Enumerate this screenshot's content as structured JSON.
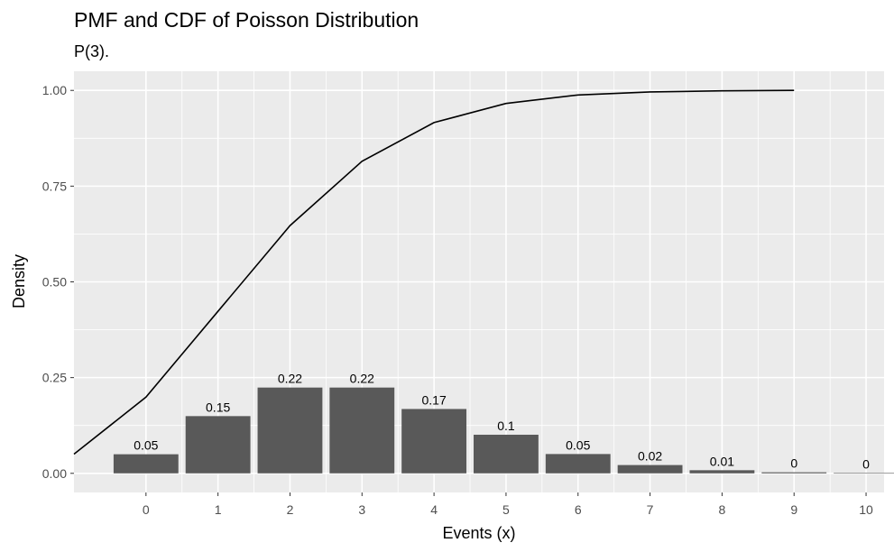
{
  "chart_data": {
    "type": "bar",
    "title": "PMF and CDF of Poisson Distribution",
    "subtitle": "P(3).",
    "xlabel": "Events (x)",
    "ylabel": "Density",
    "xlim": [
      -1,
      10.25
    ],
    "ylim": [
      -0.05,
      1.05
    ],
    "x_ticks": [
      0,
      1,
      2,
      3,
      4,
      5,
      6,
      7,
      8,
      9,
      10
    ],
    "y_ticks": [
      0.0,
      0.25,
      0.5,
      0.75,
      1.0
    ],
    "y_tick_labels": [
      "0.00",
      "0.25",
      "0.50",
      "0.75",
      "1.00"
    ],
    "grid": true,
    "legend": "none",
    "colors": {
      "panel": "#ebebeb",
      "bar": "#595959",
      "line": "#000000",
      "grid": "#ffffff"
    },
    "series": [
      {
        "type": "bar",
        "x": [
          0,
          1,
          2,
          3,
          4,
          5,
          6,
          7,
          8,
          9,
          10
        ],
        "values": [
          0.0498,
          0.1494,
          0.224,
          0.224,
          0.168,
          0.1008,
          0.0504,
          0.0216,
          0.0081,
          0.0027,
          0.0008
        ],
        "labels": [
          "0.05",
          "0.15",
          "0.22",
          "0.22",
          "0.17",
          "0.1",
          "0.05",
          "0.02",
          "0.01",
          "0",
          "0"
        ]
      },
      {
        "type": "line",
        "x": [
          -1,
          0,
          1,
          2,
          3,
          4,
          5,
          6,
          7,
          8,
          9
        ],
        "values": [
          0.05,
          0.199,
          0.423,
          0.647,
          0.815,
          0.916,
          0.966,
          0.988,
          0.996,
          0.999,
          1.0
        ]
      }
    ]
  }
}
